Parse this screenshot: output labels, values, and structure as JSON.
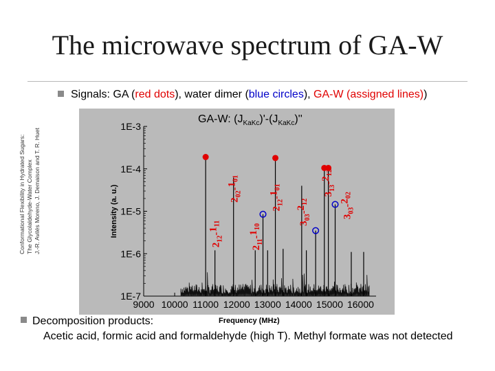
{
  "slide": {
    "title": "The microwave spectrum of GA-W",
    "side_note": [
      "Conformational Flexibility in Hydrated Sugars:",
      "The Glycolaldehyde-Water Complex",
      "J.-R. Avilés Moreno, J. Demaison and T. R. Huet"
    ],
    "signals": {
      "lead": "Signals",
      "colon": ": GA (",
      "red_dots": "red dots",
      "mid1": "), water dimer (",
      "blue_circles": "blue circles",
      "mid2": "), ",
      "gaw_assigned": "GA-W (assigned lines)"
    },
    "decomposition": {
      "label": "Decomposition products",
      "colon": ":",
      "text": "Acetic acid, formic acid and formaldehyde (high T). Methyl formate was not detected"
    },
    "colors": {
      "ga": "#e00000",
      "water": "#0000c8",
      "background": "#ffffff"
    }
  },
  "chart_data": {
    "type": "line",
    "header": {
      "text": "GA-W: (J",
      "sub1": "KaKc",
      "mid": ")'-(J",
      "sub2": "KaKc",
      "end": ")''"
    },
    "xlabel": "Frequency (MHz)",
    "ylabel": "Intensity (a. u.)",
    "y_scale": "log",
    "xlim": [
      9000,
      16500
    ],
    "ylim": [
      1e-07,
      0.001
    ],
    "x_ticks": [
      9000,
      10000,
      11000,
      12000,
      13000,
      14000,
      15000,
      16000
    ],
    "y_ticks": [
      {
        "value": 0.001,
        "label": "1E-3"
      },
      {
        "value": 0.0001,
        "label": "1E-4"
      },
      {
        "value": 1e-05,
        "label": "1E-5"
      },
      {
        "value": 1e-06,
        "label": "1E-6"
      },
      {
        "value": 1e-07,
        "label": "1E-7"
      }
    ],
    "grid": false,
    "ga_dots": [
      {
        "x": 11000,
        "y": 0.00019
      },
      {
        "x": 13250,
        "y": 0.00018
      },
      {
        "x": 14830,
        "y": 0.000105
      },
      {
        "x": 14960,
        "y": 0.000105
      }
    ],
    "water_circles": [
      {
        "x": 12850,
        "y": 8.5e-06
      },
      {
        "x": 14550,
        "y": 3.5e-06
      },
      {
        "x": 15180,
        "y": 1.45e-05
      }
    ],
    "peaks": [
      {
        "x": 11000,
        "y": 0.00019
      },
      {
        "x": 11300,
        "y": 1.2e-06
      },
      {
        "x": 11900,
        "y": 6.2e-05
      },
      {
        "x": 12600,
        "y": 1.2e-06
      },
      {
        "x": 12850,
        "y": 8.5e-06
      },
      {
        "x": 13000,
        "y": 1.2e-06
      },
      {
        "x": 13250,
        "y": 0.00018
      },
      {
        "x": 13500,
        "y": 1.3e-06
      },
      {
        "x": 14100,
        "y": 4e-05
      },
      {
        "x": 14250,
        "y": 1.2e-06
      },
      {
        "x": 14550,
        "y": 3.5e-06
      },
      {
        "x": 14830,
        "y": 0.000105
      },
      {
        "x": 14960,
        "y": 0.000105
      },
      {
        "x": 15180,
        "y": 1.45e-05
      },
      {
        "x": 15700,
        "y": 1.1e-06
      },
      {
        "x": 16100,
        "y": 1.1e-06
      }
    ],
    "assignments": [
      {
        "j1": "2",
        "s1": "12",
        "j2": "1",
        "s2": "11",
        "x": 11300,
        "base": 1.4e-06
      },
      {
        "j1": "2",
        "s1": "02",
        "j2": "1",
        "s2": "01",
        "x": 11900,
        "base": 1.6e-05
      },
      {
        "j1": "2",
        "s1": "12",
        "j2": "1",
        "s2": "01",
        "x": 13250,
        "base": 1e-05
      },
      {
        "j1": "2",
        "s1": "11",
        "j2": "1",
        "s2": "10",
        "x": 12600,
        "base": 1.2e-06
      },
      {
        "j1": "3",
        "s1": "03",
        "j2": "2",
        "s2": "12",
        "x": 14130,
        "base": 4.5e-06
      },
      {
        "j1": "3",
        "s1": "13",
        "j2": "2",
        "s2": "12",
        "x": 14930,
        "base": 2.2e-05
      },
      {
        "j1": "3",
        "s1": "03",
        "j2": "2",
        "s2": "02",
        "x": 15530,
        "base": 6.5e-06
      }
    ]
  }
}
